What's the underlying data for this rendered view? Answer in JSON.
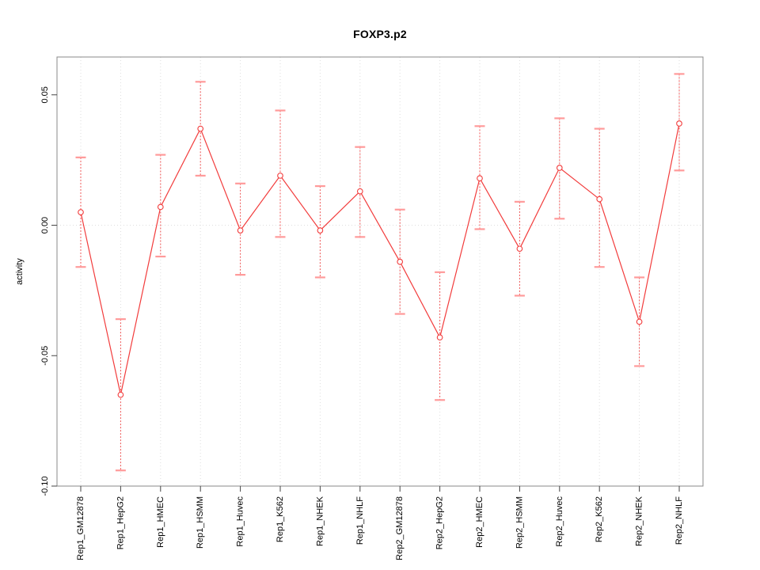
{
  "chart_data": {
    "type": "line",
    "title": "FOXP3.p2",
    "xlabel": "",
    "ylabel": "activity",
    "categories": [
      "Rep1_GM12878",
      "Rep1_HepG2",
      "Rep1_HMEC",
      "Rep1_HSMM",
      "Rep1_Huvec",
      "Rep1_K562",
      "Rep1_NHEK",
      "Rep1_NHLF",
      "Rep2_GM12878",
      "Rep2_HepG2",
      "Rep2_HMEC",
      "Rep2_HSMM",
      "Rep2_Huvec",
      "Rep2_K562",
      "Rep2_NHEK",
      "Rep2_NHLF"
    ],
    "series": [
      {
        "name": "activity",
        "values": [
          0.005,
          -0.065,
          0.007,
          0.037,
          -0.002,
          0.019,
          -0.002,
          0.013,
          -0.014,
          -0.043,
          0.018,
          -0.009,
          0.022,
          0.01,
          -0.037,
          0.039
        ]
      }
    ],
    "error_high": [
      0.026,
      -0.036,
      0.027,
      0.055,
      0.016,
      0.044,
      0.015,
      0.03,
      0.006,
      -0.018,
      0.038,
      0.009,
      0.041,
      0.037,
      -0.02,
      0.058
    ],
    "error_low": [
      -0.016,
      -0.094,
      -0.012,
      0.019,
      -0.019,
      -0.0045,
      -0.02,
      -0.0045,
      -0.034,
      -0.067,
      -0.0015,
      -0.027,
      0.0025,
      -0.016,
      -0.054,
      0.021
    ],
    "ylim": [
      -0.1,
      0.0645
    ],
    "yticks": [
      {
        "value": 0.05,
        "label": "0.05"
      },
      {
        "value": 0.0,
        "label": "0.00"
      },
      {
        "value": -0.05,
        "label": "-0.05"
      },
      {
        "value": -0.1,
        "label": "-0.10"
      }
    ],
    "grid": "dotted vertical line at each category and dotted horizontal line at zero",
    "legend_position": "none",
    "x_tick_label_rotation": 90,
    "marker": "open-circle",
    "colors": {
      "line": "#f23c3c",
      "marker": "#f23c3c",
      "error_stem": "#f05555",
      "error_cap": "#ff9a9a",
      "grid": "#dedede",
      "frame": "#888888",
      "tick": "#444444",
      "text": "#000000",
      "background": "#ffffff"
    }
  }
}
